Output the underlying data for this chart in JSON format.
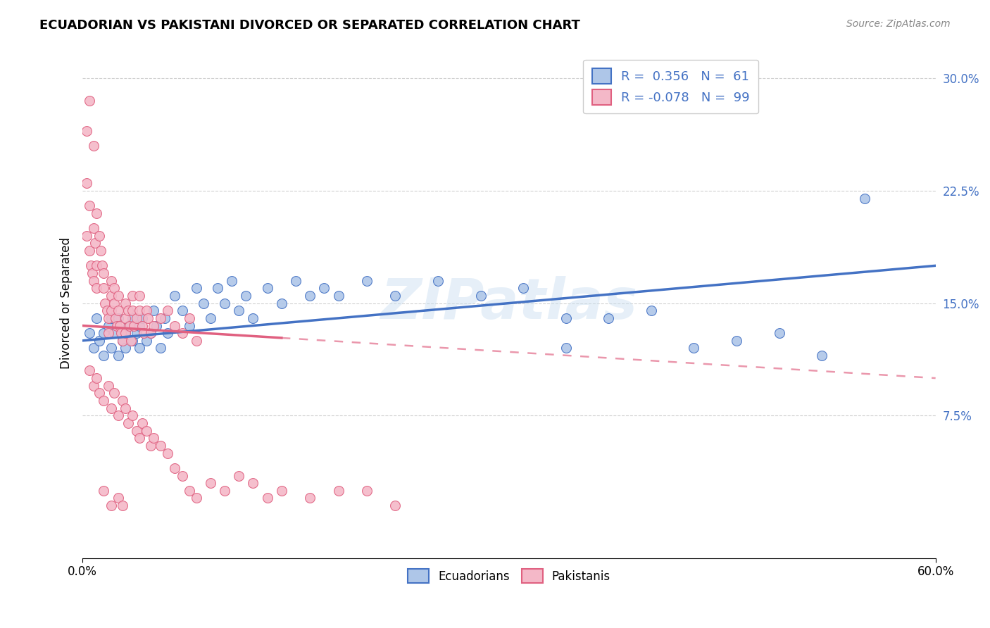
{
  "title": "ECUADORIAN VS PAKISTANI DIVORCED OR SEPARATED CORRELATION CHART",
  "source": "Source: ZipAtlas.com",
  "ylabel": "Divorced or Separated",
  "xlim": [
    0.0,
    0.6
  ],
  "ylim": [
    -0.02,
    0.32
  ],
  "yticks": [
    0.075,
    0.15,
    0.225,
    0.3
  ],
  "ytick_labels": [
    "7.5%",
    "15.0%",
    "22.5%",
    "30.0%"
  ],
  "grid_color": "#cccccc",
  "background_color": "#ffffff",
  "watermark": "ZIPatlas",
  "blue_color": "#4472c4",
  "blue_fill": "#aec6e8",
  "pink_color": "#e06080",
  "pink_fill": "#f4b8c8",
  "legend_label_color": "#4472c4",
  "blue_R": 0.356,
  "blue_N": 61,
  "pink_R": -0.078,
  "pink_N": 99,
  "blue_points": [
    [
      0.005,
      0.13
    ],
    [
      0.008,
      0.12
    ],
    [
      0.01,
      0.14
    ],
    [
      0.012,
      0.125
    ],
    [
      0.015,
      0.13
    ],
    [
      0.015,
      0.115
    ],
    [
      0.018,
      0.135
    ],
    [
      0.02,
      0.12
    ],
    [
      0.02,
      0.14
    ],
    [
      0.022,
      0.13
    ],
    [
      0.025,
      0.115
    ],
    [
      0.025,
      0.14
    ],
    [
      0.028,
      0.125
    ],
    [
      0.03,
      0.13
    ],
    [
      0.03,
      0.12
    ],
    [
      0.032,
      0.135
    ],
    [
      0.035,
      0.14
    ],
    [
      0.035,
      0.125
    ],
    [
      0.038,
      0.13
    ],
    [
      0.04,
      0.12
    ],
    [
      0.04,
      0.135
    ],
    [
      0.042,
      0.14
    ],
    [
      0.045,
      0.125
    ],
    [
      0.048,
      0.13
    ],
    [
      0.05,
      0.145
    ],
    [
      0.052,
      0.135
    ],
    [
      0.055,
      0.12
    ],
    [
      0.058,
      0.14
    ],
    [
      0.06,
      0.13
    ],
    [
      0.065,
      0.155
    ],
    [
      0.07,
      0.145
    ],
    [
      0.075,
      0.135
    ],
    [
      0.08,
      0.16
    ],
    [
      0.085,
      0.15
    ],
    [
      0.09,
      0.14
    ],
    [
      0.095,
      0.16
    ],
    [
      0.1,
      0.15
    ],
    [
      0.105,
      0.165
    ],
    [
      0.11,
      0.145
    ],
    [
      0.115,
      0.155
    ],
    [
      0.12,
      0.14
    ],
    [
      0.13,
      0.16
    ],
    [
      0.14,
      0.15
    ],
    [
      0.15,
      0.165
    ],
    [
      0.16,
      0.155
    ],
    [
      0.17,
      0.16
    ],
    [
      0.18,
      0.155
    ],
    [
      0.2,
      0.165
    ],
    [
      0.22,
      0.155
    ],
    [
      0.25,
      0.165
    ],
    [
      0.28,
      0.155
    ],
    [
      0.31,
      0.16
    ],
    [
      0.34,
      0.14
    ],
    [
      0.34,
      0.12
    ],
    [
      0.37,
      0.14
    ],
    [
      0.4,
      0.145
    ],
    [
      0.43,
      0.12
    ],
    [
      0.46,
      0.125
    ],
    [
      0.49,
      0.13
    ],
    [
      0.52,
      0.115
    ],
    [
      0.55,
      0.22
    ]
  ],
  "pink_points": [
    [
      0.003,
      0.265
    ],
    [
      0.005,
      0.285
    ],
    [
      0.008,
      0.255
    ],
    [
      0.003,
      0.23
    ],
    [
      0.005,
      0.215
    ],
    [
      0.008,
      0.2
    ],
    [
      0.003,
      0.195
    ],
    [
      0.005,
      0.185
    ],
    [
      0.006,
      0.175
    ],
    [
      0.007,
      0.17
    ],
    [
      0.008,
      0.165
    ],
    [
      0.009,
      0.19
    ],
    [
      0.01,
      0.21
    ],
    [
      0.01,
      0.175
    ],
    [
      0.01,
      0.16
    ],
    [
      0.012,
      0.195
    ],
    [
      0.013,
      0.185
    ],
    [
      0.014,
      0.175
    ],
    [
      0.015,
      0.17
    ],
    [
      0.015,
      0.16
    ],
    [
      0.016,
      0.15
    ],
    [
      0.017,
      0.145
    ],
    [
      0.018,
      0.14
    ],
    [
      0.018,
      0.13
    ],
    [
      0.02,
      0.165
    ],
    [
      0.02,
      0.155
    ],
    [
      0.02,
      0.145
    ],
    [
      0.022,
      0.16
    ],
    [
      0.022,
      0.15
    ],
    [
      0.023,
      0.14
    ],
    [
      0.024,
      0.135
    ],
    [
      0.025,
      0.155
    ],
    [
      0.025,
      0.145
    ],
    [
      0.026,
      0.135
    ],
    [
      0.027,
      0.13
    ],
    [
      0.028,
      0.125
    ],
    [
      0.03,
      0.15
    ],
    [
      0.03,
      0.14
    ],
    [
      0.03,
      0.13
    ],
    [
      0.032,
      0.145
    ],
    [
      0.033,
      0.135
    ],
    [
      0.034,
      0.125
    ],
    [
      0.035,
      0.155
    ],
    [
      0.035,
      0.145
    ],
    [
      0.036,
      0.135
    ],
    [
      0.038,
      0.14
    ],
    [
      0.04,
      0.155
    ],
    [
      0.04,
      0.145
    ],
    [
      0.042,
      0.135
    ],
    [
      0.043,
      0.13
    ],
    [
      0.045,
      0.145
    ],
    [
      0.046,
      0.14
    ],
    [
      0.048,
      0.13
    ],
    [
      0.05,
      0.135
    ],
    [
      0.055,
      0.14
    ],
    [
      0.06,
      0.145
    ],
    [
      0.065,
      0.135
    ],
    [
      0.07,
      0.13
    ],
    [
      0.075,
      0.14
    ],
    [
      0.08,
      0.125
    ],
    [
      0.005,
      0.105
    ],
    [
      0.008,
      0.095
    ],
    [
      0.01,
      0.1
    ],
    [
      0.012,
      0.09
    ],
    [
      0.015,
      0.085
    ],
    [
      0.018,
      0.095
    ],
    [
      0.02,
      0.08
    ],
    [
      0.022,
      0.09
    ],
    [
      0.025,
      0.075
    ],
    [
      0.028,
      0.085
    ],
    [
      0.03,
      0.08
    ],
    [
      0.032,
      0.07
    ],
    [
      0.035,
      0.075
    ],
    [
      0.038,
      0.065
    ],
    [
      0.04,
      0.06
    ],
    [
      0.042,
      0.07
    ],
    [
      0.045,
      0.065
    ],
    [
      0.048,
      0.055
    ],
    [
      0.05,
      0.06
    ],
    [
      0.055,
      0.055
    ],
    [
      0.06,
      0.05
    ],
    [
      0.065,
      0.04
    ],
    [
      0.07,
      0.035
    ],
    [
      0.075,
      0.025
    ],
    [
      0.08,
      0.02
    ],
    [
      0.09,
      0.03
    ],
    [
      0.1,
      0.025
    ],
    [
      0.11,
      0.035
    ],
    [
      0.12,
      0.03
    ],
    [
      0.13,
      0.02
    ],
    [
      0.14,
      0.025
    ],
    [
      0.015,
      0.025
    ],
    [
      0.02,
      0.015
    ],
    [
      0.025,
      0.02
    ],
    [
      0.028,
      0.015
    ],
    [
      0.16,
      0.02
    ],
    [
      0.18,
      0.025
    ],
    [
      0.2,
      0.025
    ],
    [
      0.22,
      0.015
    ]
  ]
}
